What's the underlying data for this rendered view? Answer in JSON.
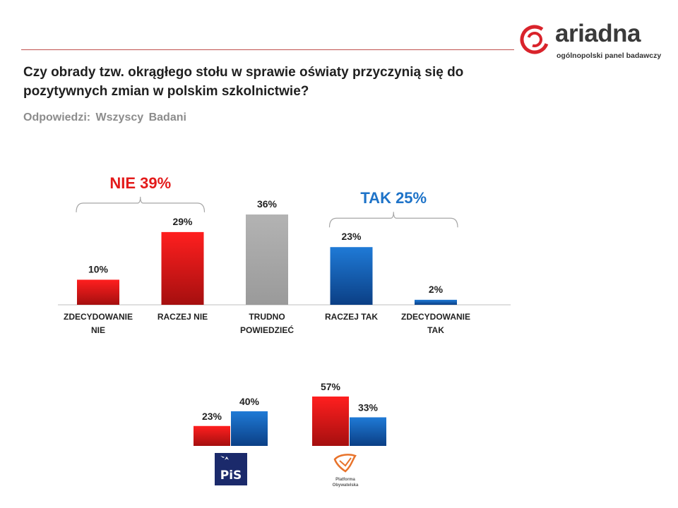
{
  "header": {
    "title": "Czy obrady tzw. okrągłego stołu w sprawie oświaty przyczynią się do pozytywnych zmian w polskim szkolnictwie?",
    "subtitle": "Odpowiedzi:  Wszyscy  Badani"
  },
  "logo": {
    "brand": "ariadna",
    "tagline": "ogólnopolski panel badawczy"
  },
  "chart_data": [
    {
      "type": "bar",
      "title": "Czy obrady tzw. okrągłego stołu w sprawie oświaty przyczynią się do pozytywnych zmian w polskim szkolnictwie?",
      "categories": [
        [
          "ZDECYDOWANIE",
          "NIE"
        ],
        [
          "RACZEJ NIE"
        ],
        [
          "TRUDNO",
          "POWIEDZIEĆ"
        ],
        [
          "RACZEJ TAK"
        ],
        [
          "ZDECYDOWANIE",
          "TAK"
        ]
      ],
      "values": [
        10,
        29,
        36,
        23,
        2
      ],
      "labels": [
        "10%",
        "29%",
        "36%",
        "23%",
        "2%"
      ],
      "colors": [
        "#e31b1b",
        "#e31b1b",
        "#a6a6a6",
        "#1565c0",
        "#1565c0"
      ],
      "ylim": [
        0,
        40
      ],
      "groups": [
        {
          "label": "NIE 39%",
          "color": "#e31b1b",
          "from": 0,
          "to": 1
        },
        {
          "label": "TAK 25%",
          "color": "#1e73c8",
          "from": 3,
          "to": 4
        }
      ],
      "xlabel": "",
      "ylabel": ""
    },
    {
      "type": "bar",
      "title": "",
      "categories": [
        "PiS",
        "Platforma Obywatelska"
      ],
      "series": [
        {
          "name": "NIE",
          "color": "#e31b1b",
          "values": [
            23,
            57
          ],
          "labels": [
            "23%",
            "57%"
          ]
        },
        {
          "name": "TAK",
          "color": "#1565c0",
          "values": [
            40,
            33
          ],
          "labels": [
            "40%",
            "33%"
          ]
        }
      ],
      "ylim": [
        0,
        60
      ],
      "xlabel": "",
      "ylabel": ""
    }
  ],
  "party_logos": {
    "pis": {
      "text": "PiS"
    },
    "po": {
      "line1": "Platforma",
      "line2": "Obywatelska"
    }
  }
}
